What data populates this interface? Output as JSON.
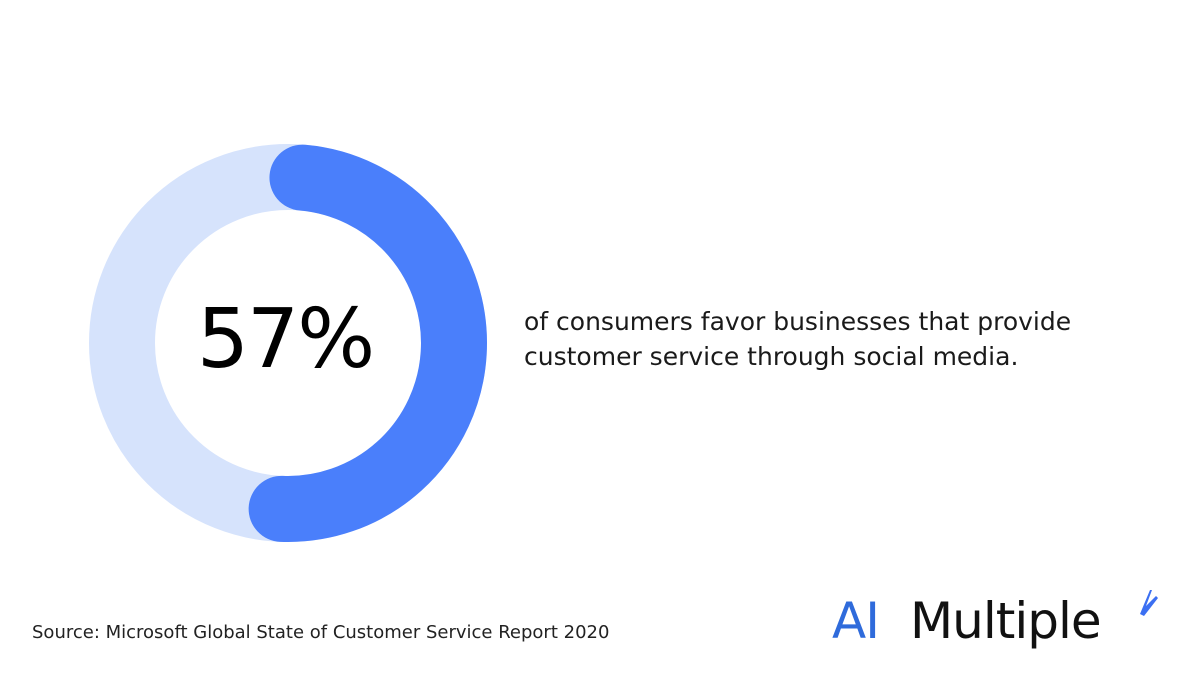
{
  "chart_data": {
    "type": "pie",
    "variant": "donut",
    "value_percent": 57,
    "center_label": "57%",
    "caption_lines": [
      "of consumers favor businesses that provide",
      "customer service through social media."
    ],
    "colors": {
      "filled": "#4a7ffb",
      "remainder": "#d6e3fc"
    }
  },
  "source": "Source: Microsoft Global State of Customer Service Report 2020",
  "logo": {
    "ai_text": "AI",
    "rest_text": "Multiple",
    "ai_color": "#2f6bdb",
    "mark_icon": "blue-slash-mark-icon"
  }
}
